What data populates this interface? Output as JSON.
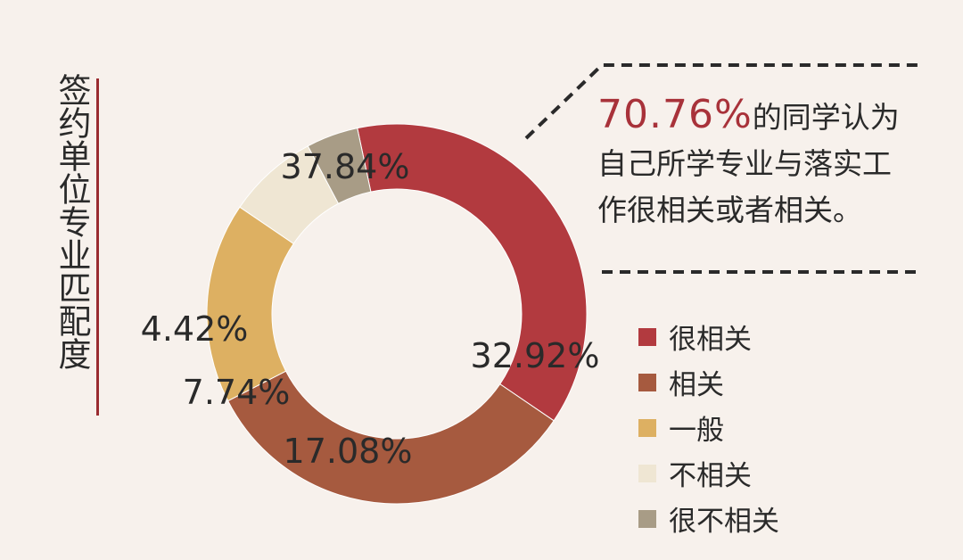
{
  "title": "签约单位专业匹配度",
  "callout": {
    "highlight": "70.76%",
    "text_line1": "的同学认为",
    "text_line2": "自己所学专业与落实工",
    "text_line3": "作很相关或者相关。"
  },
  "colors": {
    "background": "#f7f1ec",
    "accent": "#a8323a",
    "title_line": "#9a2b30"
  },
  "chart_data": {
    "type": "pie",
    "donut": true,
    "categories": [
      "很相关",
      "相关",
      "一般",
      "不相关",
      "很不相关"
    ],
    "values": [
      37.84,
      32.92,
      17.08,
      7.74,
      4.42
    ],
    "labels": [
      "37.84%",
      "32.92%",
      "17.08%",
      "7.74%",
      "4.42%"
    ],
    "colors": [
      "#b23a3f",
      "#a65a3f",
      "#ddb062",
      "#efe6d3",
      "#a89c86"
    ],
    "legend_position": "right"
  }
}
